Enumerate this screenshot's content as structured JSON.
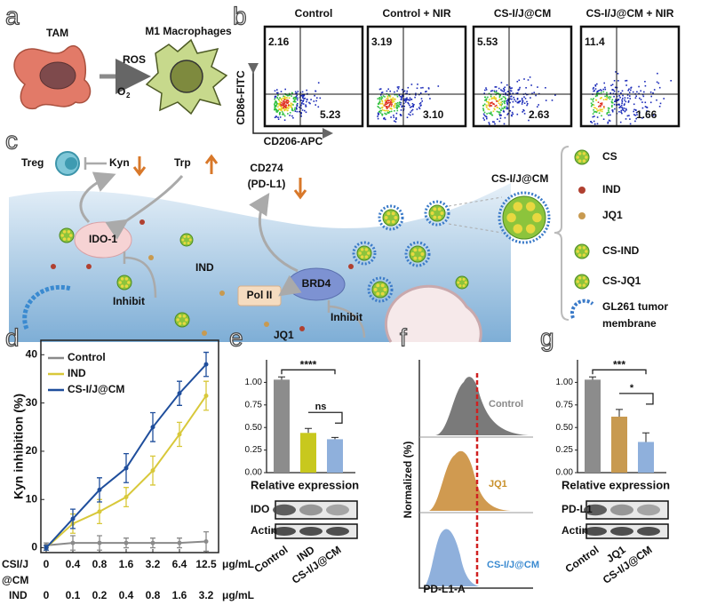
{
  "panels": {
    "a": {
      "letter": "a",
      "tam": "TAM",
      "m1": "M1 Macrophages",
      "ros": "ROS",
      "o": "O",
      "o_sub": "2"
    },
    "b": {
      "letter": "b",
      "y_label": "CD86-FITC",
      "x_label": "CD206-APC",
      "plots": [
        {
          "title": "Control",
          "upper_left": "2.16",
          "lower_right": "5.23"
        },
        {
          "title": "Control + NIR",
          "upper_left": "3.19",
          "lower_right": "3.10"
        },
        {
          "title": "CS-I/J@CM",
          "upper_left": "5.53",
          "lower_right": "2.63"
        },
        {
          "title": "CS-I/J@CM + NIR",
          "upper_left": "11.4",
          "lower_right": "1.66"
        }
      ]
    },
    "c": {
      "letter": "c",
      "treg": "Treg",
      "kyn": "Kyn",
      "trp": "Trp",
      "cd274": "CD274",
      "pdl1": "(PD-L1)",
      "ido1": "IDO-1",
      "ind": "IND",
      "inhibit_1": "Inhibit",
      "brd4": "BRD4",
      "pol2": "Pol II",
      "inhibit_2": "Inhibit",
      "jq1": "JQ1",
      "particle": "CS-I/J@CM",
      "legend": [
        "CS",
        "IND",
        "JQ1",
        "CS-IND",
        "CS-JQ1"
      ],
      "membrane": [
        "GL261 tumor",
        "membrane"
      ]
    },
    "d": {
      "letter": "d"
    },
    "e": {
      "letter": "e"
    },
    "f": {
      "letter": "f",
      "y_label": "Normalized (%)",
      "x_label": "PD-L1-A",
      "labels": [
        "Control",
        "JQ1",
        "CS-I/J@CM"
      ]
    },
    "g": {
      "letter": "g"
    }
  },
  "chart_data": [
    {
      "type": "line",
      "y_label": "Kyn inhibition (%)",
      "categories": [
        "0",
        "0.4",
        "0.8",
        "1.6",
        "3.2",
        "6.4",
        "12.5"
      ],
      "x_row_label": [
        "CSI/J",
        "@CM"
      ],
      "x_unit": "μg/mL",
      "ind_row_label": "IND",
      "ind_categories": [
        "0",
        "0.1",
        "0.2",
        "0.4",
        "0.8",
        "1.6",
        "3.2"
      ],
      "ind_unit": "μg/mL",
      "ylim": [
        -1,
        43
      ],
      "yticks": [
        0,
        10,
        20,
        30,
        40
      ],
      "series": [
        {
          "name": "Control",
          "color": "#8a8a8a",
          "values": [
            0.5,
            1,
            1,
            1,
            1,
            1,
            1.3
          ],
          "errors": [
            0.5,
            1.5,
            1.5,
            1,
            1,
            1,
            2
          ]
        },
        {
          "name": "IND",
          "color": "#d8c83a",
          "values": [
            0,
            5,
            7.5,
            10.5,
            16,
            23.5,
            31.5
          ],
          "errors": [
            0.5,
            2,
            2.5,
            2,
            3,
            2.5,
            3
          ]
        },
        {
          "name": "CS-I/J@CM",
          "color": "#1f4e9c",
          "values": [
            0,
            6,
            12,
            16.5,
            25,
            32,
            38
          ],
          "errors": [
            0.5,
            2,
            2.5,
            3,
            3,
            2.5,
            2.5
          ]
        }
      ]
    },
    {
      "type": "bar",
      "y_label": "Relative expression",
      "categories": [
        "Control",
        "IND",
        "CS-I/J@CM"
      ],
      "values": [
        1.03,
        0.44,
        0.37
      ],
      "errors": [
        0.03,
        0.05,
        0.02
      ],
      "colors": [
        "#8c8c8c",
        "#c8c81e",
        "#8fb0dc"
      ],
      "ylim": [
        0,
        1.25
      ],
      "yticks": [
        {
          "value": 0,
          "label": "0.00"
        },
        {
          "value": 0.25,
          "label": "0.25"
        },
        {
          "value": 0.5,
          "label": "0.50"
        },
        {
          "value": 0.75,
          "label": "0.75"
        },
        {
          "value": 1,
          "label": "1.00"
        }
      ],
      "significance": [
        "****",
        "ns"
      ],
      "blot_labels": [
        "IDO",
        "Actin"
      ]
    },
    {
      "type": "bar",
      "y_label": "Relative expression",
      "categories": [
        "Control",
        "JQ1",
        "CS-I/J@CM"
      ],
      "values": [
        1.03,
        0.62,
        0.34
      ],
      "errors": [
        0.03,
        0.08,
        0.1
      ],
      "colors": [
        "#8c8c8c",
        "#c89a50",
        "#8fb0dc"
      ],
      "ylim": [
        0,
        1.25
      ],
      "yticks": [
        {
          "value": 0,
          "label": "0.00"
        },
        {
          "value": 0.25,
          "label": "0.25"
        },
        {
          "value": 0.5,
          "label": "0.50"
        },
        {
          "value": 0.75,
          "label": "0.75"
        },
        {
          "value": 1,
          "label": "1.00"
        }
      ],
      "significance": [
        "***",
        "*"
      ],
      "blot_labels": [
        "PD-L1",
        "Actin"
      ]
    }
  ]
}
